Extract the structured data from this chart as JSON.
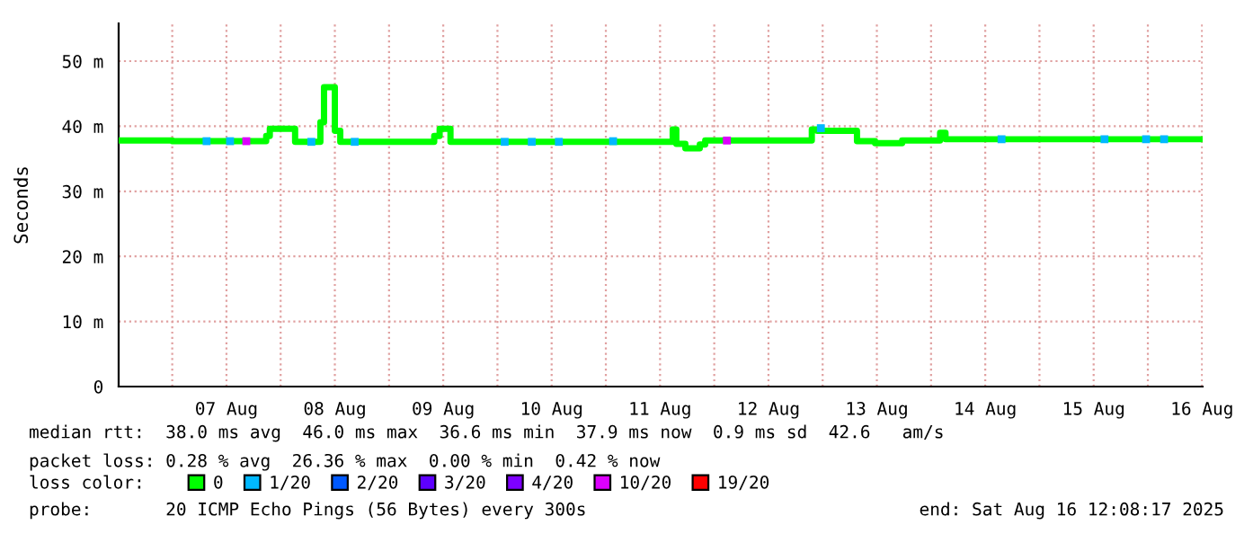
{
  "chart_data": {
    "type": "step",
    "ylabel": "Seconds",
    "xlim": [
      "2025-08-06T12:08",
      "2025-08-16T12:08"
    ],
    "ylim": [
      0,
      55.8
    ],
    "yticks": [
      0,
      {
        "value": 10,
        "label": "10 m"
      },
      {
        "value": 20,
        "label": "20 m"
      },
      {
        "value": 30,
        "label": "30 m"
      },
      {
        "value": 40,
        "label": "40 m"
      },
      {
        "value": 50,
        "label": "50 m"
      }
    ],
    "xticks": [
      {
        "value": "2025-08-07",
        "label": null
      },
      {
        "value": "2025-08-07T12:00",
        "label": "07 Aug"
      },
      {
        "value": "2025-08-08",
        "label": null
      },
      {
        "value": "2025-08-08T12:00",
        "label": "08 Aug"
      },
      {
        "value": "2025-08-09",
        "label": null
      },
      {
        "value": "2025-08-09T12:00",
        "label": "09 Aug"
      },
      {
        "value": "2025-08-10",
        "label": null
      },
      {
        "value": "2025-08-10T12:00",
        "label": "10 Aug"
      },
      {
        "value": "2025-08-11",
        "label": null
      },
      {
        "value": "2025-08-11T12:00",
        "label": "11 Aug"
      },
      {
        "value": "2025-08-12",
        "label": null
      },
      {
        "value": "2025-08-12T12:00",
        "label": "12 Aug"
      },
      {
        "value": "2025-08-13",
        "label": null
      },
      {
        "value": "2025-08-13T12:00",
        "label": "13 Aug"
      },
      {
        "value": "2025-08-14",
        "label": null
      },
      {
        "value": "2025-08-14T12:00",
        "label": "14 Aug"
      },
      {
        "value": "2025-08-15",
        "label": null
      },
      {
        "value": "2025-08-15T12:00",
        "label": "15 Aug"
      },
      {
        "value": "2025-08-16",
        "label": null
      },
      {
        "value": "2025-08-16T12:00",
        "label": "16 Aug"
      }
    ],
    "grid": true,
    "legend": "bottom",
    "legend_title": "loss color:",
    "series": [
      {
        "name": "0",
        "color": "#00ff00",
        "x": [
          "2025-08-06T12:08",
          "2025-08-07T00:00",
          "2025-08-07T20:48",
          "2025-08-07T21:36",
          "2025-08-08T03:12",
          "2025-08-08T08:48",
          "2025-08-08T09:36",
          "2025-08-08T12:00",
          "2025-08-08T13:12",
          "2025-08-09T10:00",
          "2025-08-09T11:12",
          "2025-08-09T13:36",
          "2025-08-11T14:48",
          "2025-08-11T15:36",
          "2025-08-11T17:36",
          "2025-08-11T20:48",
          "2025-08-11T22:00",
          "2025-08-12T21:36",
          "2025-08-12T22:48",
          "2025-08-13T07:36",
          "2025-08-13T11:36",
          "2025-08-13T17:36",
          "2025-08-14T02:00",
          "2025-08-14T03:12",
          "2025-08-16T12:08"
        ],
        "values": [
          37.8,
          37.7,
          38.5,
          39.6,
          37.6,
          40.6,
          46.0,
          39.3,
          37.6,
          38.5,
          39.6,
          37.6,
          39.5,
          37.3,
          36.6,
          37.2,
          37.8,
          39.5,
          39.3,
          37.7,
          37.4,
          37.8,
          39.0,
          38.0,
          38.0
        ]
      },
      {
        "name": "1/20",
        "color": "#00b8ff",
        "type": "scatter",
        "marker": "square",
        "x": [
          "2025-08-07T07:36",
          "2025-08-07T12:48",
          "2025-08-08T06:48",
          "2025-08-08T16:24",
          "2025-08-10T01:36",
          "2025-08-10T07:36",
          "2025-08-10T13:36",
          "2025-08-11T01:36",
          "2025-08-12T23:36",
          "2025-08-14T15:36",
          "2025-08-15T14:24",
          "2025-08-15T23:36",
          "2025-08-16T03:36"
        ],
        "values": [
          37.7,
          37.7,
          37.6,
          37.6,
          37.6,
          37.6,
          37.6,
          37.7,
          39.7,
          38.0,
          38.0,
          38.0,
          38.0
        ]
      },
      {
        "name": "2/20",
        "color": "#0059ff",
        "type": "scatter",
        "marker": "square"
      },
      {
        "name": "3/20",
        "color": "#5e00ff",
        "type": "scatter",
        "marker": "square"
      },
      {
        "name": "4/20",
        "color": "#7e00ff",
        "type": "scatter",
        "marker": "square"
      },
      {
        "name": "10/20",
        "color": "#dd00ff",
        "type": "scatter",
        "marker": "square",
        "x": [
          "2025-08-07T16:24",
          "2025-08-12T02:48"
        ],
        "values": [
          37.7,
          37.8
        ]
      },
      {
        "name": "19/20",
        "color": "#ff0000",
        "type": "scatter",
        "marker": "square"
      }
    ],
    "annotations": [
      "median rtt:  38.0 ms avg  46.0 ms max  36.6 ms min  37.9 ms now  0.9 ms sd  42.6   am/s",
      "packet loss: 0.28 % avg  26.36 % max  0.00 % min  0.42 % now",
      "probe:       20 ICMP Echo Pings (56 Bytes) every 300s",
      "end: Sat Aug 16 12:08:17 2025"
    ]
  }
}
